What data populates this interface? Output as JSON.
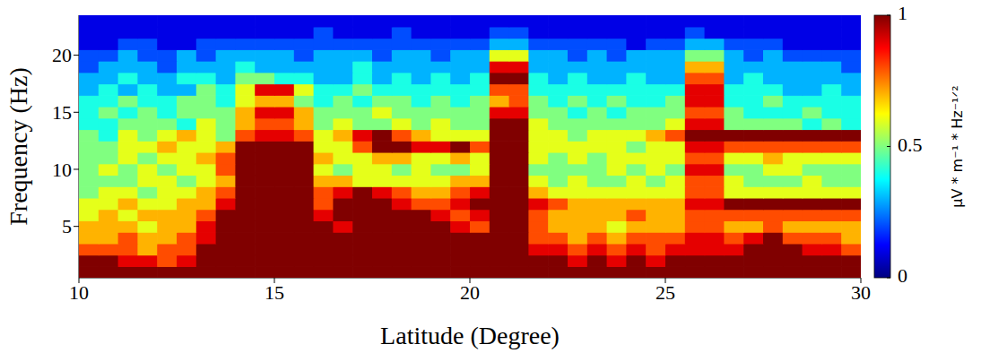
{
  "chart_data": {
    "type": "heatmap",
    "x_label": "Latitude (Degree)",
    "y_label": "Frequency (Hz)",
    "xlim": [
      10,
      30
    ],
    "xticks": [
      10,
      15,
      20,
      25,
      30
    ],
    "ylim": [
      0.5,
      23.5
    ],
    "yticks": [
      5,
      10,
      15,
      20
    ],
    "colorbar_label": "μV * m⁻¹ * Hz⁻¹ᐟ²",
    "colorbar_range": [
      0,
      1
    ],
    "colorbar_ticks": [
      0,
      0.5,
      1
    ],
    "x": [
      10.25,
      10.75,
      11.25,
      11.75,
      12.25,
      12.75,
      13.25,
      13.75,
      14.25,
      14.75,
      15.25,
      15.75,
      16.25,
      16.75,
      17.25,
      17.75,
      18.25,
      18.75,
      19.25,
      19.75,
      20.25,
      20.75,
      21.25,
      21.75,
      22.25,
      22.75,
      23.25,
      23.75,
      24.25,
      24.75,
      25.25,
      25.75,
      26.25,
      26.75,
      27.25,
      27.75,
      28.25,
      28.75,
      29.25,
      29.75
    ],
    "y": [
      1,
      2,
      3,
      4,
      5,
      6,
      7,
      8,
      9,
      10,
      11,
      12,
      13,
      14,
      15,
      16,
      17,
      18,
      19,
      20,
      21,
      22,
      23
    ],
    "values": [
      [
        1,
        1,
        1,
        1,
        1,
        1,
        1,
        1,
        1,
        1,
        1,
        1,
        1,
        1,
        1,
        1,
        1,
        1,
        1,
        1,
        1,
        1,
        1,
        1,
        1,
        1,
        1,
        1,
        1,
        1,
        1,
        1,
        1,
        1,
        1,
        1,
        1,
        1,
        1,
        1
      ],
      [
        1,
        1,
        0.9,
        0.9,
        0.8,
        0.9,
        1,
        1,
        1,
        1,
        1,
        1,
        1,
        1,
        1,
        1,
        1,
        1,
        1,
        1,
        1,
        1,
        1,
        1,
        1,
        0.9,
        1,
        0.9,
        1,
        0.9,
        1,
        1,
        1,
        1,
        1,
        1,
        1,
        1,
        1,
        1
      ],
      [
        0.8,
        0.8,
        0.8,
        0.7,
        0.8,
        0.8,
        1,
        1,
        1,
        1,
        1,
        1,
        1,
        1,
        1,
        1,
        1,
        1,
        1,
        1,
        1,
        1,
        1,
        0.9,
        0.9,
        0.8,
        0.9,
        0.8,
        0.9,
        0.8,
        0.9,
        0.9,
        0.9,
        0.9,
        1,
        1,
        1,
        0.9,
        0.9,
        0.8
      ],
      [
        0.7,
        0.7,
        0.8,
        0.7,
        0.7,
        0.8,
        0.9,
        1,
        1,
        1,
        1,
        1,
        1,
        1,
        1,
        1,
        1,
        1,
        1,
        1,
        1,
        1,
        1,
        0.8,
        0.8,
        0.7,
        0.8,
        0.7,
        0.8,
        0.8,
        0.8,
        0.9,
        0.9,
        0.8,
        0.9,
        1,
        0.8,
        0.8,
        0.8,
        0.7
      ],
      [
        0.7,
        0.7,
        0.7,
        0.6,
        0.7,
        0.7,
        0.9,
        1,
        1,
        1,
        1,
        1,
        1,
        0.9,
        1,
        1,
        1,
        1,
        1,
        0.9,
        0.8,
        1,
        1,
        0.8,
        0.7,
        0.7,
        0.7,
        0.6,
        0.7,
        0.7,
        0.7,
        0.8,
        0.8,
        0.7,
        0.7,
        0.8,
        0.7,
        0.7,
        0.7,
        0.7
      ],
      [
        0.6,
        0.7,
        0.6,
        0.7,
        0.7,
        0.7,
        0.8,
        1,
        1,
        1,
        1,
        1,
        0.9,
        1,
        1,
        1,
        1,
        1,
        0.9,
        0.8,
        0.9,
        1,
        1,
        0.8,
        0.7,
        0.7,
        0.7,
        0.7,
        0.8,
        0.7,
        0.7,
        0.8,
        0.8,
        0.8,
        0.8,
        0.8,
        0.8,
        0.8,
        0.8,
        0.8
      ],
      [
        0.6,
        0.6,
        0.7,
        0.6,
        0.6,
        0.7,
        0.7,
        0.9,
        1,
        1,
        1,
        1,
        0.8,
        1,
        1,
        1,
        0.9,
        0.8,
        0.8,
        0.9,
        1,
        1,
        1,
        0.9,
        0.8,
        0.7,
        0.7,
        0.7,
        0.7,
        0.7,
        0.7,
        0.9,
        0.9,
        1,
        1,
        1,
        1,
        1,
        1,
        1
      ],
      [
        0.5,
        0.6,
        0.6,
        0.5,
        0.6,
        0.6,
        0.7,
        0.8,
        1,
        1,
        1,
        1,
        0.8,
        0.9,
        1,
        0.9,
        0.8,
        0.7,
        0.7,
        0.8,
        0.9,
        1,
        1,
        0.7,
        0.6,
        0.6,
        0.6,
        0.6,
        0.6,
        0.6,
        0.6,
        0.8,
        0.8,
        0.6,
        0.6,
        0.6,
        0.6,
        0.6,
        0.6,
        0.6
      ],
      [
        0.5,
        0.5,
        0.5,
        0.6,
        0.6,
        0.5,
        0.6,
        0.7,
        1,
        1,
        1,
        1,
        0.7,
        0.7,
        0.6,
        0.6,
        0.6,
        0.6,
        0.6,
        0.7,
        0.7,
        1,
        1,
        0.6,
        0.5,
        0.6,
        0.5,
        0.5,
        0.6,
        0.5,
        0.6,
        0.8,
        0.8,
        0.6,
        0.5,
        0.5,
        0.5,
        0.6,
        0.5,
        0.5
      ],
      [
        0.5,
        0.6,
        0.5,
        0.6,
        0.5,
        0.6,
        0.6,
        0.8,
        1,
        1,
        1,
        1,
        0.6,
        0.5,
        0.6,
        0.6,
        0.5,
        0.6,
        0.5,
        0.5,
        0.6,
        1,
        1,
        0.5,
        0.5,
        0.5,
        0.5,
        0.6,
        0.5,
        0.6,
        0.5,
        0.9,
        0.9,
        0.5,
        0.5,
        0.6,
        0.6,
        0.5,
        0.5,
        0.5
      ],
      [
        0.5,
        0.5,
        0.6,
        0.5,
        0.6,
        0.6,
        0.7,
        0.8,
        1,
        1,
        1,
        1,
        0.7,
        0.6,
        0.6,
        0.7,
        0.7,
        0.6,
        0.6,
        0.7,
        0.6,
        1,
        1,
        0.6,
        0.5,
        0.6,
        0.5,
        0.6,
        0.6,
        0.6,
        0.6,
        0.8,
        0.8,
        0.6,
        0.6,
        0.7,
        0.6,
        0.6,
        0.6,
        0.6
      ],
      [
        0.5,
        0.5,
        0.6,
        0.6,
        0.7,
        0.6,
        0.6,
        0.7,
        1,
        1,
        1,
        1,
        0.6,
        0.6,
        0.8,
        1,
        1,
        0.9,
        0.9,
        1,
        0.8,
        1,
        1,
        0.6,
        0.6,
        0.6,
        0.6,
        0.6,
        0.5,
        0.6,
        0.6,
        0.9,
        0.9,
        0.8,
        0.8,
        0.8,
        0.8,
        0.8,
        0.8,
        0.8
      ],
      [
        0.5,
        0.4,
        0.6,
        0.5,
        0.6,
        0.7,
        0.6,
        0.5,
        0.8,
        0.9,
        0.9,
        0.8,
        0.6,
        0.7,
        0.9,
        1,
        0.8,
        0.7,
        0.6,
        0.6,
        0.6,
        1,
        1,
        0.6,
        0.6,
        0.5,
        0.6,
        0.6,
        0.6,
        0.7,
        0.8,
        1,
        1,
        1,
        1,
        1,
        1,
        1,
        1,
        1
      ],
      [
        0.4,
        0.4,
        0.5,
        0.5,
        0.5,
        0.4,
        0.6,
        0.5,
        0.7,
        0.8,
        0.8,
        0.7,
        0.5,
        0.6,
        0.5,
        0.5,
        0.6,
        0.5,
        0.6,
        0.5,
        0.5,
        1,
        1,
        0.6,
        0.5,
        0.5,
        0.5,
        0.5,
        0.5,
        0.5,
        0.6,
        0.9,
        0.9,
        0.5,
        0.5,
        0.5,
        0.5,
        0.4,
        0.5,
        0.4
      ],
      [
        0.4,
        0.5,
        0.4,
        0.5,
        0.4,
        0.5,
        0.5,
        0.5,
        0.7,
        0.9,
        0.9,
        0.7,
        0.5,
        0.5,
        0.5,
        0.6,
        0.5,
        0.5,
        0.5,
        0.5,
        0.5,
        0.9,
        0.9,
        0.5,
        0.5,
        0.4,
        0.5,
        0.4,
        0.5,
        0.5,
        0.5,
        0.8,
        0.8,
        0.5,
        0.4,
        0.4,
        0.4,
        0.5,
        0.4,
        0.4
      ],
      [
        0.4,
        0.4,
        0.5,
        0.4,
        0.4,
        0.5,
        0.5,
        0.4,
        0.6,
        0.7,
        0.7,
        0.5,
        0.4,
        0.5,
        0.4,
        0.5,
        0.5,
        0.4,
        0.5,
        0.4,
        0.5,
        0.7,
        0.8,
        0.5,
        0.4,
        0.5,
        0.4,
        0.5,
        0.4,
        0.4,
        0.5,
        0.9,
        0.9,
        0.4,
        0.4,
        0.5,
        0.4,
        0.4,
        0.4,
        0.4
      ],
      [
        0.3,
        0.4,
        0.3,
        0.4,
        0.3,
        0.3,
        0.5,
        0.4,
        0.6,
        0.9,
        0.9,
        0.6,
        0.4,
        0.4,
        0.5,
        0.4,
        0.4,
        0.4,
        0.4,
        0.4,
        0.4,
        0.8,
        0.8,
        0.4,
        0.4,
        0.4,
        0.4,
        0.4,
        0.4,
        0.4,
        0.4,
        0.9,
        0.9,
        0.4,
        0.4,
        0.4,
        0.3,
        0.3,
        0.4,
        0.3
      ],
      [
        0.3,
        0.3,
        0.4,
        0.3,
        0.3,
        0.4,
        0.4,
        0.3,
        0.5,
        0.5,
        0.4,
        0.4,
        0.3,
        0.3,
        0.4,
        0.3,
        0.4,
        0.3,
        0.4,
        0.3,
        0.4,
        1,
        1,
        0.4,
        0.3,
        0.4,
        0.3,
        0.3,
        0.4,
        0.3,
        0.3,
        0.8,
        0.8,
        0.3,
        0.4,
        0.3,
        0.3,
        0.3,
        0.3,
        0.3
      ],
      [
        0.2,
        0.3,
        0.3,
        0.3,
        0.2,
        0.3,
        0.3,
        0.3,
        0.4,
        0.3,
        0.3,
        0.3,
        0.3,
        0.3,
        0.4,
        0.3,
        0.3,
        0.3,
        0.3,
        0.3,
        0.3,
        0.9,
        0.9,
        0.3,
        0.3,
        0.3,
        0.3,
        0.3,
        0.3,
        0.3,
        0.3,
        0.7,
        0.7,
        0.3,
        0.3,
        0.3,
        0.3,
        0.3,
        0.3,
        0.2
      ],
      [
        0.2,
        0.2,
        0.3,
        0.2,
        0.2,
        0.3,
        0.2,
        0.3,
        0.3,
        0.3,
        0.3,
        0.2,
        0.3,
        0.3,
        0.3,
        0.2,
        0.3,
        0.3,
        0.2,
        0.3,
        0.3,
        0.6,
        0.6,
        0.3,
        0.3,
        0.2,
        0.3,
        0.2,
        0.3,
        0.3,
        0.3,
        0.5,
        0.5,
        0.3,
        0.2,
        0.3,
        0.2,
        0.2,
        0.2,
        0.2
      ],
      [
        0.1,
        0.1,
        0.2,
        0.2,
        0.1,
        0.1,
        0.2,
        0.2,
        0.2,
        0.2,
        0.2,
        0.2,
        0.2,
        0.2,
        0.2,
        0.2,
        0.2,
        0.2,
        0.2,
        0.2,
        0.2,
        0.3,
        0.3,
        0.2,
        0.2,
        0.2,
        0.2,
        0.2,
        0.1,
        0.2,
        0.2,
        0.3,
        0.3,
        0.2,
        0.2,
        0.2,
        0.1,
        0.1,
        0.1,
        0.1
      ],
      [
        0.1,
        0.1,
        0.1,
        0.1,
        0.1,
        0.1,
        0.1,
        0.1,
        0.1,
        0.1,
        0.1,
        0.1,
        0.2,
        0.1,
        0.1,
        0.1,
        0.2,
        0.1,
        0.1,
        0.1,
        0.1,
        0.2,
        0.2,
        0.1,
        0.1,
        0.1,
        0.1,
        0.1,
        0.1,
        0.1,
        0.1,
        0.2,
        0.1,
        0.1,
        0.1,
        0.1,
        0.1,
        0.1,
        0.1,
        0.1
      ],
      [
        0.1,
        0.1,
        0.1,
        0.1,
        0.1,
        0.1,
        0.1,
        0.1,
        0.1,
        0.1,
        0.1,
        0.1,
        0.1,
        0.1,
        0.1,
        0.1,
        0.1,
        0.1,
        0.1,
        0.1,
        0.1,
        0.1,
        0.1,
        0.1,
        0.1,
        0.1,
        0.1,
        0.1,
        0.1,
        0.1,
        0.1,
        0.1,
        0.1,
        0.1,
        0.1,
        0.1,
        0.1,
        0.1,
        0.1,
        0.1
      ]
    ]
  }
}
